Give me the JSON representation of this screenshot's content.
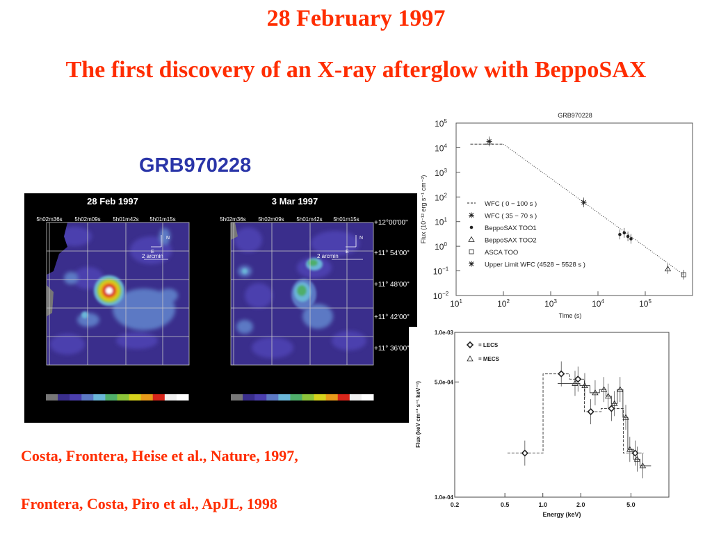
{
  "slide": {
    "date_title": "28 February 1997",
    "main_title": "The first discovery of an X-ray afterglow with BeppoSAX",
    "grb_label": "GRB970228",
    "references": [
      "Costa, Frontera, Heise et al., Nature,  1997,",
      "Frontera, Costa, Piro et al., ApJL, 1998"
    ]
  },
  "images": {
    "left_title": "28 Feb 1997",
    "right_title": "3 Mar 1997",
    "ra_ticks": [
      "5h02m36s",
      "5h02m09s",
      "5h01m42s",
      "5h01m15s"
    ],
    "dec_ticks": [
      "+12°00'00\"",
      "+11° 54'00\"",
      "+11° 48'00\"",
      "+11° 42'00\"",
      "+11° 36'00\""
    ],
    "compass_n": "N",
    "compass_e": "E",
    "scale_text": "2 arcmin",
    "colorbar": [
      "#777777",
      "#3a2e8c",
      "#4b3fae",
      "#5c79c4",
      "#6ab6d8",
      "#4fae6a",
      "#8cc43a",
      "#d6d21c",
      "#e89a1a",
      "#d8251a",
      "#f0f0f0",
      "#ffffff"
    ]
  },
  "chart_data": [
    {
      "type": "scatter",
      "title": "GRB970228",
      "xlabel": "Time (s)",
      "ylabel": "Flux (10⁻¹² erg s⁻¹ cm⁻²)",
      "xscale": "log",
      "yscale": "log",
      "xlim": [
        10,
        1000000
      ],
      "ylim": [
        0.01,
        100000
      ],
      "x_ticks": [
        {
          "b": "10",
          "e": "1"
        },
        {
          "b": "10",
          "e": "2"
        },
        {
          "b": "10",
          "e": "3"
        },
        {
          "b": "10",
          "e": "4"
        },
        {
          "b": "10",
          "e": "5"
        }
      ],
      "y_ticks": [
        {
          "b": "10",
          "e": "5"
        },
        {
          "b": "10",
          "e": "4"
        },
        {
          "b": "10",
          "e": "3"
        },
        {
          "b": "10",
          "e": "2"
        },
        {
          "b": "10",
          "e": "1"
        },
        {
          "b": "10",
          "e": "0"
        },
        {
          "b": "10",
          "e": "−1"
        },
        {
          "b": "10",
          "e": "−2"
        }
      ],
      "legend": [
        "WFC ( 0 − 100 s )",
        "WFC ( 35 − 70 s )",
        "BeppoSAX TOO1",
        "BeppoSAX TOO2",
        "ASCA TOO",
        "Upper Limit WFC (4528 − 5528 s )"
      ],
      "series": [
        {
          "name": "WFC ( 0 − 100 s )",
          "marker": "dash",
          "points": [
            [
              50,
              14000
            ]
          ]
        },
        {
          "name": "WFC ( 35 − 70 s )",
          "marker": "star",
          "points": [
            [
              50,
              18000
            ]
          ]
        },
        {
          "name": "Upper Limit WFC (4528 − 5528 s )",
          "marker": "star",
          "points": [
            [
              5000,
              60
            ]
          ]
        },
        {
          "name": "BeppoSAX TOO1",
          "marker": "dot",
          "points": [
            [
              29000,
              3
            ],
            [
              36000,
              3.5
            ],
            [
              43000,
              2.5
            ],
            [
              50000,
              2
            ]
          ]
        },
        {
          "name": "BeppoSAX TOO2",
          "marker": "triangle",
          "points": [
            [
              300000,
              0.12
            ]
          ]
        },
        {
          "name": "ASCA TOO",
          "marker": "square",
          "points": [
            [
              650000,
              0.07
            ]
          ]
        }
      ],
      "fit_line": [
        [
          20,
          14000
        ],
        [
          100,
          14000
        ],
        [
          650000,
          0.07
        ]
      ]
    },
    {
      "type": "scatter",
      "xlabel": "Energy (keV)",
      "ylabel": "Flux (keV cm⁻² s⁻¹ keV⁻¹)",
      "xscale": "log",
      "yscale": "log",
      "xlim": [
        0.2,
        10
      ],
      "ylim": [
        0.0001,
        0.001
      ],
      "x_ticks": [
        "0.2",
        "0.5",
        "1.0",
        "2.0",
        "5.0"
      ],
      "y_ticks": [
        "1.0e-03",
        "5.0e-04",
        "1.0e-04"
      ],
      "series": [
        {
          "name": "= LECS",
          "marker": "diamond",
          "points": [
            [
              0.72,
              0.000185
            ],
            [
              1.4,
              0.00056
            ],
            [
              1.9,
              0.00052
            ],
            [
              2.4,
              0.00033
            ],
            [
              3.5,
              0.000345
            ],
            [
              5.4,
              0.000185
            ]
          ]
        },
        {
          "name": "= MECS",
          "marker": "triangle",
          "points": [
            [
              1.8,
              0.00049
            ],
            [
              2.15,
              0.000475
            ],
            [
              2.6,
              0.00043
            ],
            [
              3.05,
              0.00045
            ],
            [
              3.3,
              0.00041
            ],
            [
              3.7,
              0.00037
            ],
            [
              4.1,
              0.00045
            ],
            [
              4.55,
              0.000305
            ],
            [
              4.9,
              0.000195
            ],
            [
              5.6,
              0.00017
            ],
            [
              6.2,
              0.000155
            ]
          ]
        }
      ]
    }
  ]
}
